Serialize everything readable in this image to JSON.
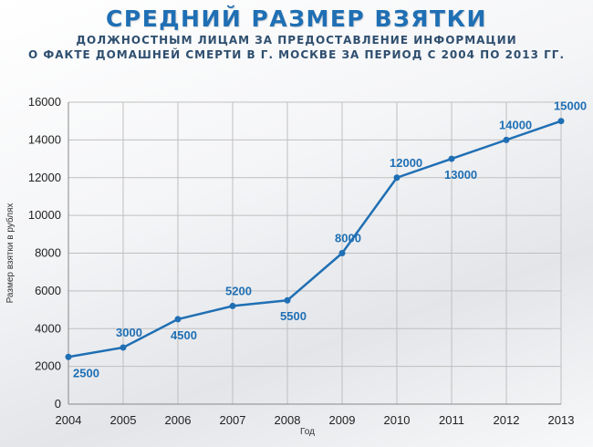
{
  "header": {
    "title": "СРЕДНИЙ РАЗМЕР ВЗЯТКИ",
    "subtitle_line1": "ДОЛЖНОСТНЫМ ЛИЦАМ ЗА ПРЕДОСТАВЛЕНИЕ ИНФОРМАЦИИ",
    "subtitle_line2": "О ФАКТЕ ДОМАШНЕЙ СМЕРТИ В Г. МОСКВЕ ЗА ПЕРИОД С 2004 ПО 2013 ГГ."
  },
  "colors": {
    "line": "#1f6fb4",
    "label": "#1f6fb4",
    "title": "#1f6fb4",
    "grid": "#bfbfbf"
  },
  "chart_data": {
    "type": "line",
    "title": "СРЕДНИЙ РАЗМЕР ВЗЯТКИ",
    "xlabel": "Год",
    "ylabel": "Размер взятки в рублях",
    "x": [
      "2004",
      "2005",
      "2006",
      "2007",
      "2008",
      "2009",
      "2010",
      "2011",
      "2012",
      "2013"
    ],
    "series": [
      {
        "values": [
          2500,
          3000,
          4500,
          5200,
          5500,
          8000,
          12000,
          13000,
          14000,
          15000
        ]
      }
    ],
    "data_labels": [
      "2500",
      "3000",
      "4500",
      "5200",
      "5500",
      "8000",
      "12000",
      "13000",
      "14000",
      "15000"
    ],
    "ylim": [
      0,
      16000
    ],
    "yticks": [
      "0",
      "2000",
      "4000",
      "6000",
      "8000",
      "10000",
      "12000",
      "14000",
      "16000"
    ],
    "grid": "horizontal and vertical",
    "legend": "none"
  }
}
